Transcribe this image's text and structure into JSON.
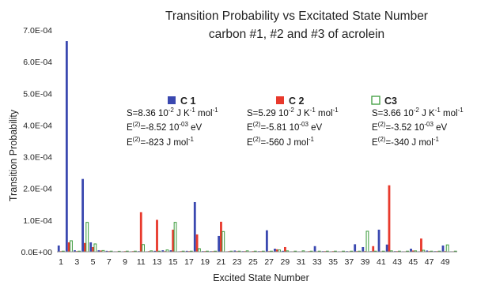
{
  "chart_data": {
    "type": "bar",
    "title": "Transition Probability vs Excitated State Number",
    "subtitle": "carbon #1, #2 and #3 of acrolein",
    "xlabel": "Excited State Number",
    "ylabel": "Transition Probability",
    "ylim": [
      0,
      0.0007
    ],
    "yticks": [
      "0.0E+00",
      "1.0E-04",
      "2.0E-04",
      "3.0E-04",
      "4.0E-04",
      "5.0E-04",
      "6.0E-04",
      "7.0E-04"
    ],
    "ytick_values": [
      0,
      0.0001,
      0.0002,
      0.0003,
      0.0004,
      0.0005,
      0.0006,
      0.0007
    ],
    "xticks": [
      "1",
      "3",
      "5",
      "7",
      "9",
      "11",
      "13",
      "15",
      "17",
      "19",
      "21",
      "23",
      "25",
      "27",
      "29",
      "31",
      "33",
      "35",
      "37",
      "39",
      "41",
      "43",
      "45",
      "47",
      "49"
    ],
    "categories": [
      1,
      2,
      3,
      4,
      5,
      6,
      7,
      8,
      9,
      10,
      11,
      12,
      13,
      14,
      15,
      16,
      17,
      18,
      19,
      20,
      21,
      22,
      23,
      24,
      25,
      26,
      27,
      28,
      29,
      30,
      31,
      32,
      33,
      34,
      35,
      36,
      37,
      38,
      39,
      40,
      41,
      42,
      43,
      44,
      45,
      46,
      47,
      48,
      49,
      50
    ],
    "legend_position": "top-center",
    "series": [
      {
        "name": "C 1",
        "color": "#3a48b0",
        "style": "filled",
        "values": [
          2e-05,
          0.000665,
          5e-06,
          0.00023,
          3e-05,
          5e-06,
          3e-06,
          1e-06,
          1e-06,
          1e-06,
          2e-06,
          1e-06,
          3e-06,
          5e-06,
          5e-06,
          1e-06,
          3e-06,
          0.000157,
          2e-06,
          2e-06,
          5e-05,
          1e-06,
          4e-06,
          2e-06,
          1e-06,
          2e-06,
          6.8e-05,
          1e-05,
          3e-06,
          1e-06,
          1e-06,
          1e-06,
          1.8e-05,
          2e-06,
          1e-06,
          1e-06,
          2e-06,
          2.4e-05,
          1.5e-05,
          2e-06,
          7e-05,
          2.3e-05,
          2e-06,
          1e-06,
          1e-05,
          1e-06,
          4e-06,
          2e-06,
          2e-05,
          1e-06
        ]
      },
      {
        "name": "C 2",
        "color": "#e8392c",
        "style": "filled",
        "values": [
          2e-06,
          3e-05,
          2e-06,
          2.8e-05,
          1.5e-05,
          4e-06,
          2e-06,
          1e-06,
          2e-06,
          2e-06,
          0.000125,
          2e-06,
          0.000101,
          2e-06,
          7e-05,
          2e-06,
          2e-06,
          5.5e-05,
          2e-06,
          2e-06,
          9.5e-05,
          2e-06,
          2e-06,
          2e-06,
          2e-06,
          2e-06,
          2e-06,
          8e-06,
          1.5e-05,
          1e-06,
          1e-06,
          2e-06,
          1e-06,
          2e-06,
          2e-06,
          1e-06,
          1e-06,
          2e-06,
          2e-06,
          1.8e-05,
          1e-06,
          0.00021,
          2e-06,
          1e-06,
          4e-06,
          4.2e-05,
          2e-06,
          2e-06,
          2e-06,
          1e-06
        ]
      },
      {
        "name": "C3",
        "color": "#3a9a3a",
        "style": "outline",
        "values": [
          2e-06,
          3.5e-05,
          2e-06,
          9.3e-05,
          2.5e-05,
          4e-06,
          2e-06,
          1e-06,
          2e-06,
          2e-06,
          2.3e-05,
          3e-06,
          2e-06,
          6e-06,
          9.3e-05,
          2e-06,
          2e-06,
          1e-05,
          2e-06,
          2e-06,
          6.4e-05,
          2e-06,
          2e-06,
          3e-06,
          2e-06,
          2e-06,
          2e-06,
          6e-06,
          3e-06,
          2e-06,
          3e-06,
          2e-06,
          2e-06,
          2e-06,
          2e-06,
          2e-06,
          2e-06,
          2e-06,
          6.5e-05,
          2e-06,
          2e-06,
          3e-06,
          2e-06,
          2e-06,
          3e-06,
          5e-06,
          2e-06,
          2e-06,
          2.2e-05,
          2e-06
        ]
      }
    ],
    "annotations": [
      {
        "series": "C 1",
        "S_pre": "S=8.36 10",
        "S_exp": "-2",
        "S_post": " J K",
        "K_exp": "-1",
        "S_mol": " mol",
        "mol_exp": "-1",
        "E_pre": "E",
        "E_sup": "(2)",
        "E_val": "=-8.52 10",
        "E_exp": "-03",
        "E_unit": " eV",
        "J_val": "=-823 J mol",
        "J_exp": "-1"
      },
      {
        "series": "C 2",
        "S_pre": "S=5.29 10",
        "S_exp": "-2",
        "S_post": " J K",
        "K_exp": "-1",
        "S_mol": " mol",
        "mol_exp": "-1",
        "E_pre": "E",
        "E_sup": "(2)",
        "E_val": "=-5.81 10",
        "E_exp": "-03",
        "E_unit": " eV",
        "J_val": "=-560 J mol",
        "J_exp": "-1"
      },
      {
        "series": "C3",
        "S_pre": "S=3.66  10",
        "S_exp": "-2",
        "S_post": " J K",
        "K_exp": "-1",
        "S_mol": " mol",
        "mol_exp": "-1",
        "E_pre": "E",
        "E_sup": "(2)",
        "E_val": "=-3.52  10",
        "E_exp": "-03",
        "E_unit": "  eV",
        "J_val": "=-340 J mol",
        "J_exp": "-1"
      }
    ]
  }
}
